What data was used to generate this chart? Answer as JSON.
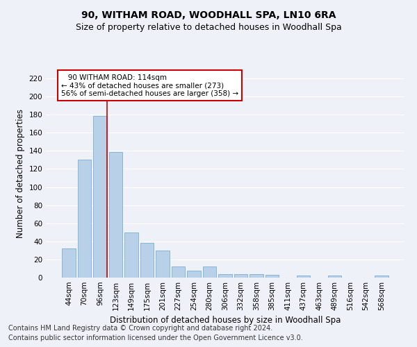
{
  "title_line1": "90, WITHAM ROAD, WOODHALL SPA, LN10 6RA",
  "title_line2": "Size of property relative to detached houses in Woodhall Spa",
  "xlabel": "Distribution of detached houses by size in Woodhall Spa",
  "ylabel": "Number of detached properties",
  "footer_line1": "Contains HM Land Registry data © Crown copyright and database right 2024.",
  "footer_line2": "Contains public sector information licensed under the Open Government Licence v3.0.",
  "annotation_line1": "   90 WITHAM ROAD: 114sqm",
  "annotation_line2": "← 43% of detached houses are smaller (273)",
  "annotation_line3": "56% of semi-detached houses are larger (358) →",
  "bar_labels": [
    "44sqm",
    "70sqm",
    "96sqm",
    "123sqm",
    "149sqm",
    "175sqm",
    "201sqm",
    "227sqm",
    "254sqm",
    "280sqm",
    "306sqm",
    "332sqm",
    "358sqm",
    "385sqm",
    "411sqm",
    "437sqm",
    "463sqm",
    "489sqm",
    "516sqm",
    "542sqm",
    "568sqm"
  ],
  "bar_values": [
    32,
    130,
    179,
    139,
    50,
    38,
    30,
    12,
    8,
    12,
    4,
    4,
    4,
    3,
    0,
    2,
    0,
    2,
    0,
    0,
    2
  ],
  "bar_color": "#b8d0e8",
  "bar_edge_color": "#7aadd4",
  "vline_x_index": 2.45,
  "vline_color": "#cc0000",
  "annotation_box_color": "#cc0000",
  "annotation_text_color": "black",
  "ylim": [
    0,
    230
  ],
  "yticks": [
    0,
    20,
    40,
    60,
    80,
    100,
    120,
    140,
    160,
    180,
    200,
    220
  ],
  "background_color": "#eef2f8",
  "plot_background_color": "#eef2f8",
  "grid_color": "#ffffff",
  "title1_fontsize": 10,
  "title2_fontsize": 9,
  "xlabel_fontsize": 8.5,
  "ylabel_fontsize": 8.5,
  "footer_fontsize": 7,
  "tick_fontsize": 7.5,
  "annotation_fontsize": 7.5
}
